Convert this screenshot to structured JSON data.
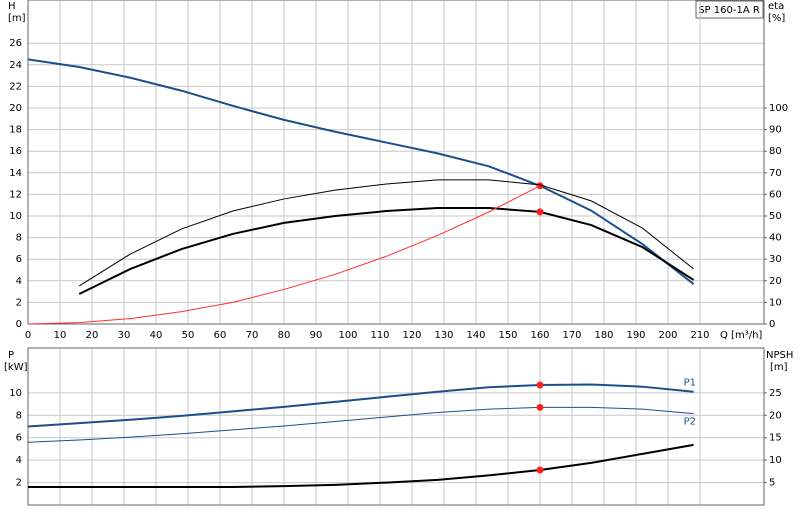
{
  "chart_data": [
    {
      "type": "line",
      "title": "SP 160-1A R",
      "ylabel": "H",
      "yunit": "[m]",
      "y2label": "eta",
      "y2unit": "[%]",
      "xlabel": "Q [m³/h]",
      "xlim": [
        0,
        230
      ],
      "xticks": [
        0,
        10,
        20,
        30,
        40,
        50,
        60,
        70,
        80,
        90,
        100,
        110,
        120,
        130,
        140,
        150,
        160,
        170,
        180,
        190,
        200,
        210
      ],
      "ylim": [
        0,
        30
      ],
      "yticks": [
        0,
        2,
        4,
        6,
        8,
        10,
        12,
        14,
        16,
        18,
        20,
        22,
        24,
        26
      ],
      "y2lim": [
        0,
        150
      ],
      "y2ticks": [
        0,
        10,
        20,
        30,
        40,
        50,
        60,
        70,
        80,
        90,
        100
      ],
      "grid": true,
      "highlight_x": 160,
      "x": [
        0,
        16,
        32,
        48,
        64,
        80,
        96,
        112,
        128,
        144,
        160,
        176,
        192,
        208
      ],
      "series": [
        {
          "color": "#1b4f8c",
          "line_width": 2,
          "marker": true,
          "values": [
            24.5,
            23.8,
            22.8,
            21.6,
            20.2,
            18.9,
            17.8,
            16.8,
            15.8,
            14.6,
            12.8,
            10.5,
            7.4,
            3.7
          ]
        },
        {
          "color": "#000000",
          "line_width": 1,
          "marker": false,
          "axis": "y2",
          "values": [
            null,
            17.6,
            32.4,
            44,
            52.3,
            57.9,
            62,
            64.8,
            66.7,
            66.7,
            64.4,
            57,
            44.4,
            25.5
          ]
        },
        {
          "color": "#000000",
          "line_width": 2,
          "marker": true,
          "axis": "y2",
          "values": [
            null,
            13.9,
            25.5,
            34.7,
            41.7,
            46.8,
            50,
            52.3,
            53.7,
            53.7,
            51.9,
            45.8,
            35.6,
            20.4
          ]
        },
        {
          "color": "#ff3030",
          "line_width": 1,
          "marker": false,
          "values": [
            0,
            0.13,
            0.5,
            1.15,
            2,
            3.2,
            4.6,
            6.27,
            8.2,
            10.37,
            12.8,
            null,
            null,
            null
          ]
        }
      ]
    },
    {
      "type": "line",
      "ylabel": "P",
      "yunit": "[kW]",
      "y2label": "NPSH",
      "y2unit": "[m]",
      "xlim": [
        0,
        230
      ],
      "ylim": [
        0,
        14
      ],
      "yticks": [
        2,
        4,
        6,
        8,
        10
      ],
      "y2lim": [
        0,
        35
      ],
      "y2ticks": [
        5,
        10,
        15,
        20,
        25
      ],
      "grid": true,
      "highlight_x": 160,
      "x": [
        0,
        16,
        32,
        48,
        64,
        80,
        96,
        112,
        128,
        144,
        160,
        176,
        192,
        208
      ],
      "series": [
        {
          "name": "P1",
          "color": "#1b4f8c",
          "line_width": 2,
          "marker": true,
          "values": [
            7.0,
            7.3,
            7.6,
            7.95,
            8.35,
            8.75,
            9.2,
            9.65,
            10.1,
            10.5,
            10.7,
            10.75,
            10.55,
            10.1
          ]
        },
        {
          "name": "P2",
          "color": "#1b4f8c",
          "line_width": 1,
          "marker": true,
          "values": [
            5.6,
            5.8,
            6.05,
            6.35,
            6.7,
            7.05,
            7.45,
            7.85,
            8.25,
            8.55,
            8.7,
            8.7,
            8.55,
            8.15
          ]
        },
        {
          "color": "#000000",
          "line_width": 2,
          "marker": true,
          "axis": "y2",
          "values": [
            4.0,
            4.0,
            4.0,
            4.0,
            4.0,
            4.2,
            4.5,
            5.0,
            5.6,
            6.6,
            7.8,
            9.4,
            11.4,
            13.4
          ]
        }
      ]
    }
  ]
}
